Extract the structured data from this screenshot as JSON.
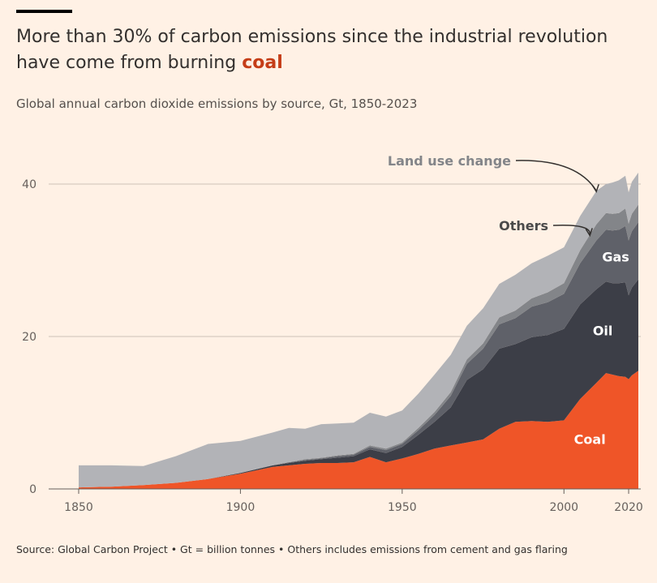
{
  "header": {
    "title_prefix": "More than 30% of carbon emissions since the industrial revolution have come from burning ",
    "title_highlight": "coal",
    "subtitle": "Global annual carbon dioxide emissions by source, Gt, 1850-2023"
  },
  "footer": {
    "source": "Source: Global Carbon Project • Gt = billion tonnes • Others includes emissions from cement and gas flaring"
  },
  "chart_data": {
    "type": "area",
    "stacked": true,
    "title": "More than 30% of carbon emissions since the industrial revolution have come from burning coal",
    "subtitle": "Global annual carbon dioxide emissions by source, Gt, 1850-2023",
    "xlim": [
      1850,
      2023
    ],
    "ylim": [
      0,
      40
    ],
    "x_ticks": [
      1850,
      1900,
      1950,
      2000,
      2020
    ],
    "y_ticks": [
      0,
      20,
      40
    ],
    "grid": "horizontal",
    "colors": {
      "Coal": "#ef5528",
      "Oil": "#3c3e47",
      "Gas": "#5f6169",
      "Others": "#838589",
      "Land use change": "#b2b3b7",
      "background": "#fff1e5",
      "highlight": "#c53d17"
    },
    "x": [
      1850,
      1860,
      1870,
      1880,
      1890,
      1900,
      1910,
      1915,
      1920,
      1925,
      1930,
      1935,
      1940,
      1945,
      1950,
      1955,
      1960,
      1965,
      1970,
      1975,
      1980,
      1985,
      1990,
      1995,
      2000,
      2005,
      2010,
      2013,
      2015,
      2017,
      2019,
      2020,
      2021,
      2023
    ],
    "series": [
      {
        "name": "Coal",
        "values": [
          0.2,
          0.3,
          0.5,
          0.8,
          1.3,
          2.0,
          2.9,
          3.1,
          3.3,
          3.4,
          3.4,
          3.5,
          4.2,
          3.5,
          4.0,
          4.6,
          5.3,
          5.7,
          6.1,
          6.5,
          7.9,
          8.8,
          8.9,
          8.8,
          9.0,
          11.8,
          13.9,
          15.2,
          15.0,
          14.8,
          14.7,
          14.4,
          14.9,
          15.5
        ]
      },
      {
        "name": "Oil",
        "values": [
          0.0,
          0.0,
          0.0,
          0.0,
          0.0,
          0.1,
          0.2,
          0.3,
          0.4,
          0.5,
          0.7,
          0.8,
          1.0,
          1.2,
          1.5,
          2.5,
          3.5,
          5.0,
          8.2,
          9.2,
          10.5,
          10.2,
          11.0,
          11.4,
          12.0,
          12.4,
          12.3,
          12.0,
          12.0,
          12.2,
          12.4,
          11.0,
          11.5,
          12.0
        ]
      },
      {
        "name": "Gas",
        "values": [
          0.0,
          0.0,
          0.0,
          0.0,
          0.0,
          0.0,
          0.0,
          0.1,
          0.1,
          0.1,
          0.2,
          0.2,
          0.3,
          0.4,
          0.4,
          0.6,
          0.9,
          1.5,
          2.1,
          2.7,
          3.2,
          3.4,
          4.0,
          4.3,
          4.6,
          5.4,
          6.4,
          6.8,
          6.9,
          7.0,
          7.4,
          7.2,
          7.4,
          7.5
        ]
      },
      {
        "name": "Others",
        "values": [
          0.0,
          0.0,
          0.0,
          0.0,
          0.0,
          0.0,
          0.0,
          0.0,
          0.1,
          0.1,
          0.1,
          0.1,
          0.2,
          0.2,
          0.2,
          0.3,
          0.4,
          0.5,
          0.6,
          0.7,
          0.9,
          1.0,
          1.1,
          1.3,
          1.4,
          1.7,
          2.1,
          2.2,
          2.2,
          2.2,
          2.3,
          2.2,
          2.3,
          2.3
        ]
      },
      {
        "name": "Land use change",
        "values": [
          2.9,
          2.8,
          2.5,
          3.5,
          4.6,
          4.2,
          4.3,
          4.5,
          4.0,
          4.4,
          4.2,
          4.1,
          4.3,
          4.2,
          4.2,
          4.5,
          4.9,
          4.9,
          4.4,
          4.6,
          4.4,
          4.7,
          4.6,
          4.8,
          4.7,
          4.5,
          4.4,
          3.8,
          4.1,
          4.3,
          4.3,
          4.1,
          4.2,
          4.2
        ]
      }
    ],
    "annotations": [
      {
        "text": "Land use change",
        "series": "Land use change",
        "type": "arrow"
      },
      {
        "text": "Others",
        "series": "Others",
        "type": "arrow"
      },
      {
        "text": "Gas",
        "series": "Gas",
        "type": "inline"
      },
      {
        "text": "Oil",
        "series": "Oil",
        "type": "inline"
      },
      {
        "text": "Coal",
        "series": "Coal",
        "type": "inline"
      }
    ]
  }
}
